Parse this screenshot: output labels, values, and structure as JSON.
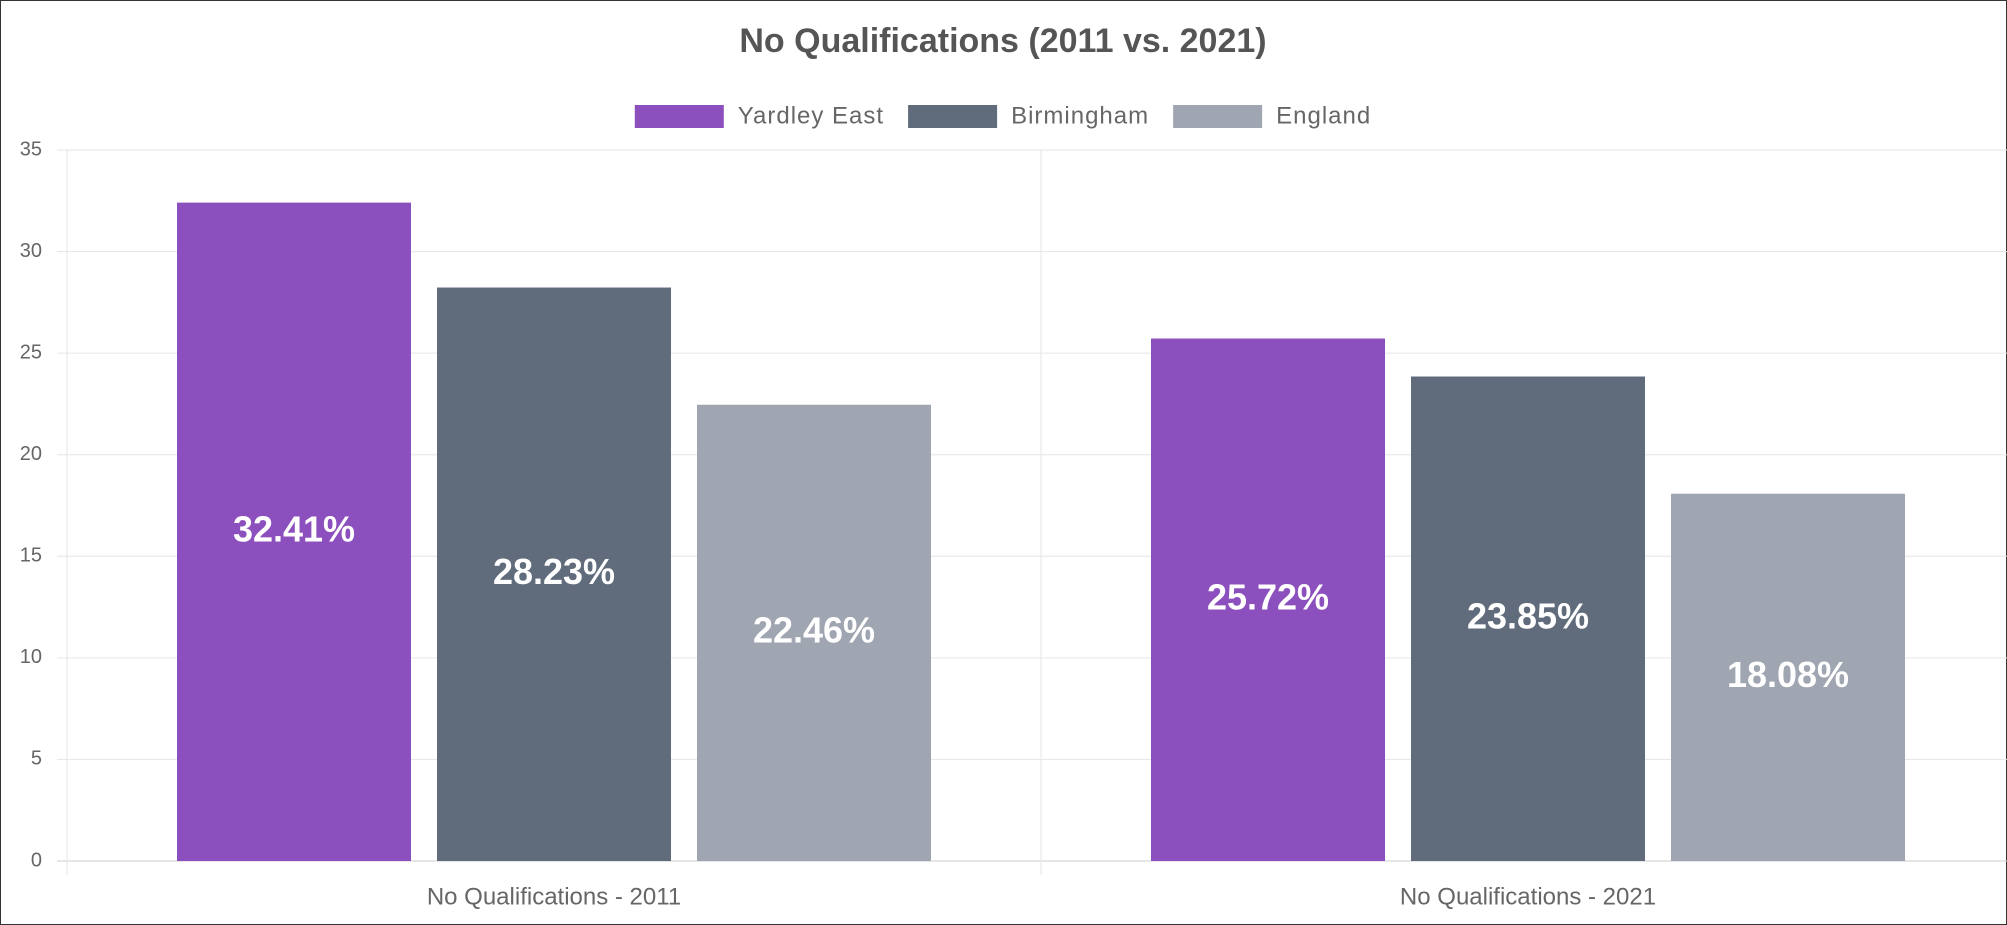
{
  "chart_data": {
    "type": "bar",
    "title": "No Qualifications (2011 vs. 2021)",
    "categories": [
      "No Qualifications - 2011",
      "No Qualifications - 2021"
    ],
    "series": [
      {
        "name": "Yardley East",
        "color": "#8c4fbe",
        "values": [
          32.41,
          25.72
        ],
        "value_labels": [
          "32.41%",
          "25.72%"
        ]
      },
      {
        "name": "Birmingham",
        "color": "#606b7c",
        "values": [
          28.23,
          23.85
        ],
        "value_labels": [
          "28.23%",
          "23.85%"
        ]
      },
      {
        "name": "England",
        "color": "#9fa5b1",
        "values": [
          22.46,
          18.08
        ],
        "value_labels": [
          "22.46%",
          "18.08%"
        ]
      }
    ],
    "ylim": [
      0,
      35
    ],
    "yticks": [
      0,
      5,
      10,
      15,
      20,
      25,
      30,
      35
    ],
    "grid": true,
    "legend": "top"
  }
}
